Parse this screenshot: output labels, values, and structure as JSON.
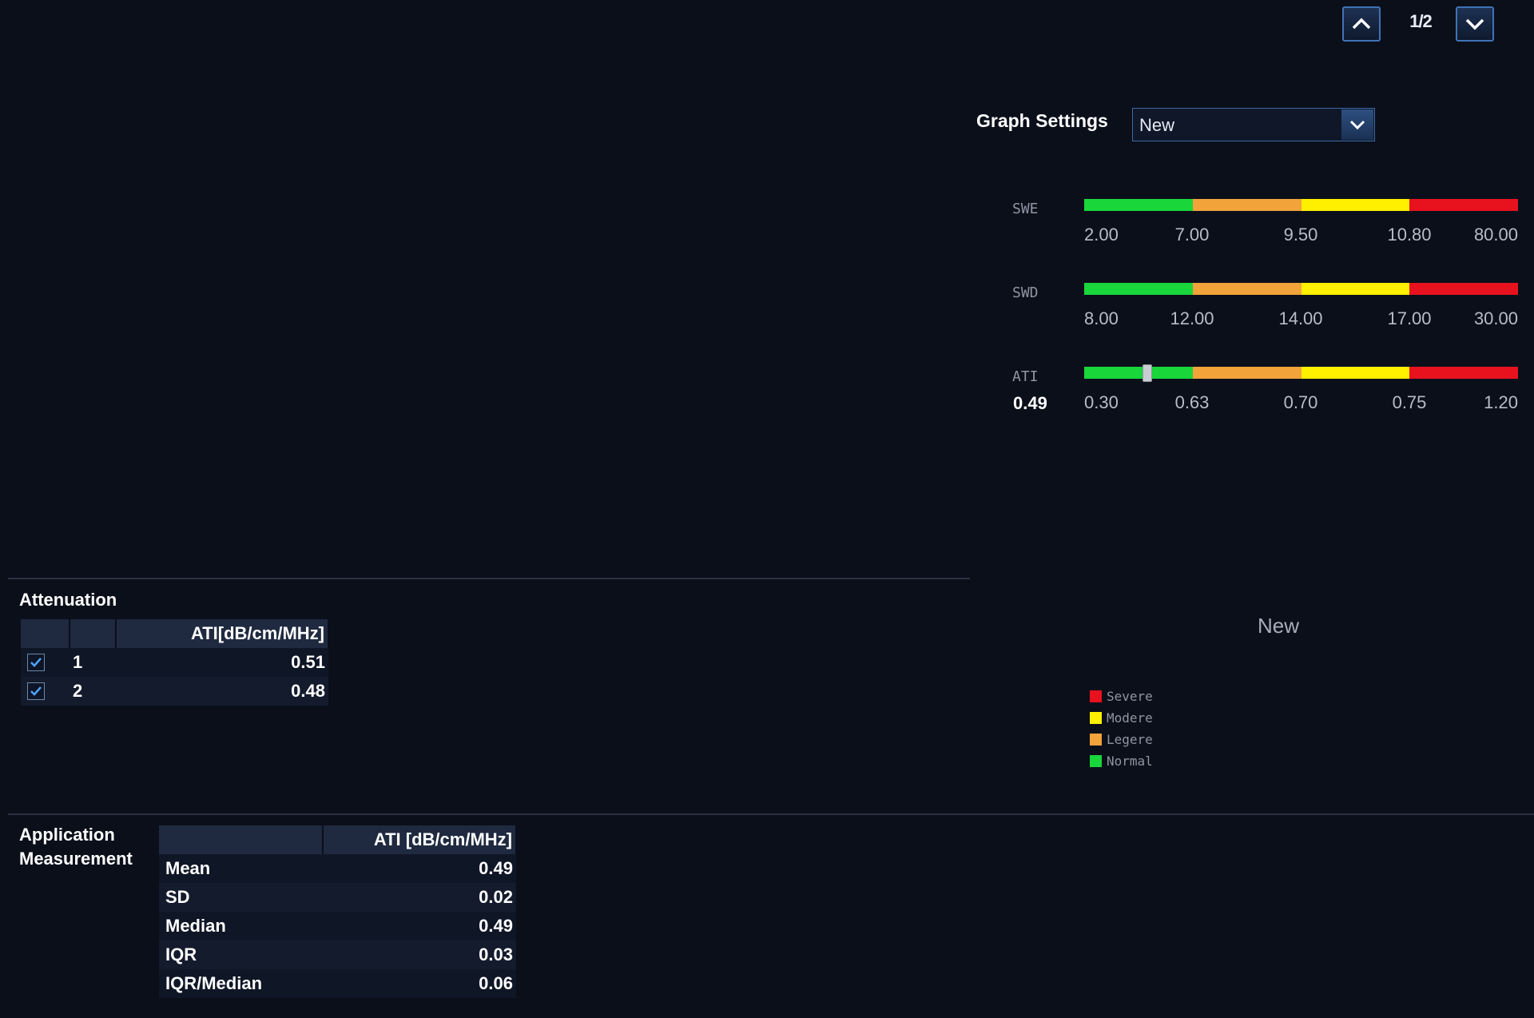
{
  "pager": {
    "text": "1/2",
    "up_icon": "chevron-up-icon",
    "down_icon": "chevron-down-icon"
  },
  "graph_settings": {
    "label": "Graph Settings",
    "selected": "New"
  },
  "colors": {
    "green": "#19d63a",
    "orange": "#f2a33a",
    "yellow": "#fff000",
    "red": "#e8121f",
    "accent": "#3f73b5"
  },
  "scales": {
    "swe": {
      "name": "SWE",
      "ticks": [
        "2.00",
        "7.00",
        "9.50",
        "10.80",
        "80.00"
      ]
    },
    "swd": {
      "name": "SWD",
      "ticks": [
        "8.00",
        "12.00",
        "14.00",
        "17.00",
        "30.00"
      ]
    },
    "ati": {
      "name": "ATI",
      "value": "0.49",
      "ticks": [
        "0.30",
        "0.63",
        "0.70",
        "0.75",
        "1.20"
      ]
    }
  },
  "attenuation": {
    "title": "Attenuation",
    "header": "ATI[dB/cm/MHz]",
    "rows": [
      {
        "index": "1",
        "value": "0.51",
        "checked": true
      },
      {
        "index": "2",
        "value": "0.48",
        "checked": true
      }
    ]
  },
  "legend": {
    "title": "New",
    "items": [
      {
        "label": "Severe",
        "color": "#e8121f"
      },
      {
        "label": "Modere",
        "color": "#fff000"
      },
      {
        "label": "Legere",
        "color": "#f2a33a"
      },
      {
        "label": "Normal",
        "color": "#19d63a"
      }
    ]
  },
  "application_measurement": {
    "title_line1": "Application",
    "title_line2": "Measurement",
    "header": "ATI [dB/cm/MHz]",
    "rows": [
      {
        "label": "Mean",
        "value": "0.49"
      },
      {
        "label": "SD",
        "value": "0.02"
      },
      {
        "label": "Median",
        "value": "0.49"
      },
      {
        "label": "IQR",
        "value": "0.03"
      },
      {
        "label": "IQR/Median",
        "value": "0.06"
      }
    ]
  }
}
